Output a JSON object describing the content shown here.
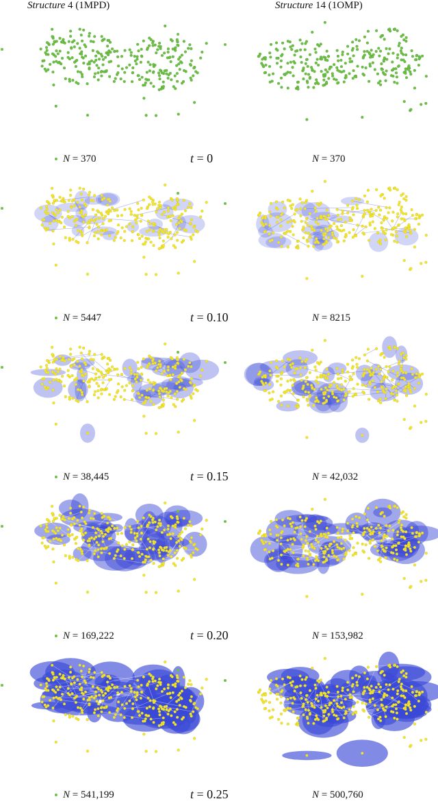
{
  "headers": [
    {
      "italic": "Structure",
      "rest": " 4 (1MPD)"
    },
    {
      "italic": "Structure",
      "rest": " 14 (1OMP)"
    }
  ],
  "colors": {
    "point_initial": "#6dbf45",
    "point_fused": "#f2e62e",
    "haze": "#3a48d6"
  },
  "rows": [
    {
      "t_sym": "t",
      "t_val": " = 0",
      "left": {
        "sym": "N",
        "val": " = 370"
      },
      "right": {
        "sym": "N",
        "val": " = 370"
      },
      "density": 0.0
    },
    {
      "t_sym": "t",
      "t_val": " = 0.10",
      "left": {
        "sym": "N",
        "val": " = 5447"
      },
      "right": {
        "sym": "N",
        "val": " = 8215"
      },
      "density": 0.2
    },
    {
      "t_sym": "t",
      "t_val": " = 0.15",
      "left": {
        "sym": "N",
        "val": " = 38,445"
      },
      "right": {
        "sym": "N",
        "val": " = 42,032"
      },
      "density": 0.38
    },
    {
      "t_sym": "t",
      "t_val": " = 0.20",
      "left": {
        "sym": "N",
        "val": " = 169,222"
      },
      "right": {
        "sym": "N",
        "val": " = 153,982"
      },
      "density": 0.65
    },
    {
      "t_sym": "t",
      "t_val": " = 0.25",
      "left": {
        "sym": "N",
        "val": " = 541,199"
      },
      "right": {
        "sym": "N",
        "val": " = 500,760"
      },
      "density": 0.95
    }
  ]
}
